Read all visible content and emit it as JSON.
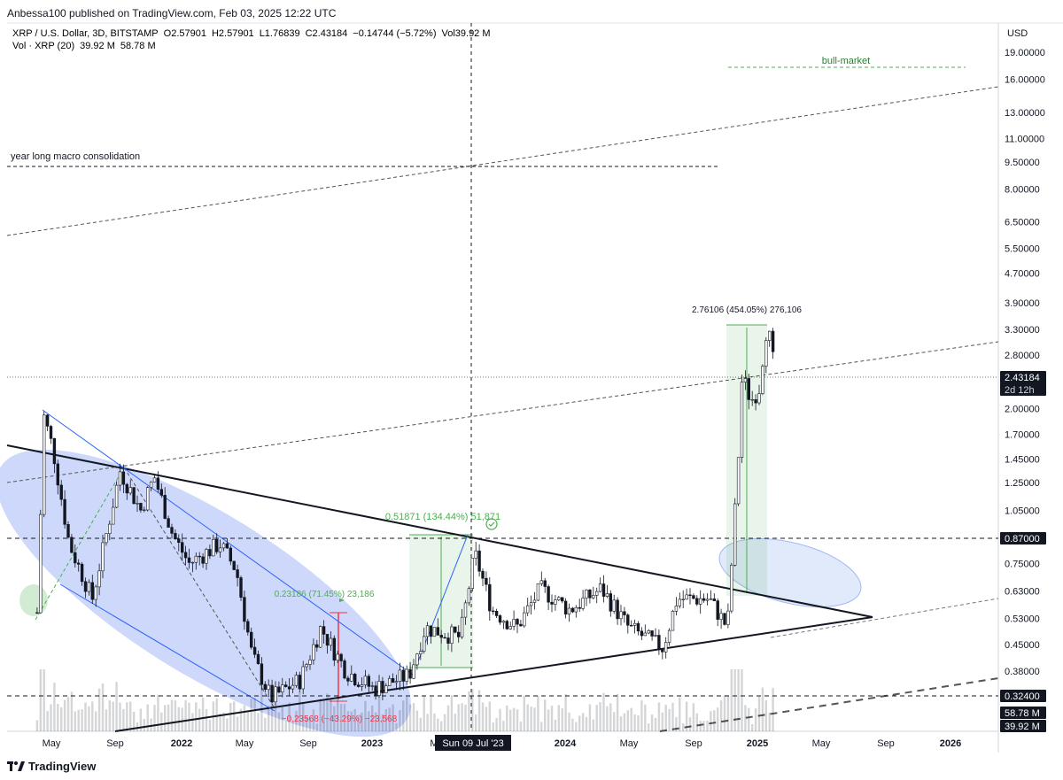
{
  "header": {
    "published": "Anbessa100 published on TradingView.com, Feb 03, 2025 12:22 UTC",
    "symbol": "XRP / U.S. Dollar, 3D, BITSTAMP",
    "o": "O2.57901",
    "h": "H2.57901",
    "l": "L1.76839",
    "c": "C2.43184",
    "chg": "−0.14744 (−5.72%)",
    "vol": "Vol39.92 M",
    "vol_label": "Vol · XRP (20)",
    "vol_v1": "39.92 M",
    "vol_v2": "58.78 M"
  },
  "footer": {
    "brand": "TradingView"
  },
  "colors": {
    "up": "#131722",
    "down": "#131722",
    "blue_ellipse": "#6f8ff0",
    "green": "#4caf50",
    "red": "#f23645",
    "price_tag": "#131722"
  },
  "chart_data": {
    "type": "candlestick",
    "y_scale": "log",
    "y_unit": "USD",
    "ylim": [
      0.3,
      22
    ],
    "y_ticks": [
      "19.00000",
      "16.00000",
      "13.00000",
      "11.00000",
      "9.50000",
      "8.00000",
      "6.50000",
      "5.50000",
      "4.70000",
      "3.90000",
      "3.30000",
      "2.80000",
      "2.00000",
      "1.70000",
      "1.45000",
      "1.25000",
      "1.05000",
      "0.75000",
      "0.63000",
      "0.53000",
      "0.45000",
      "0.38000"
    ],
    "x_ticks": [
      "May",
      "Sep",
      "2022",
      "May",
      "Sep",
      "2023",
      "M",
      "2024",
      "May",
      "Sep",
      "2025",
      "May",
      "Sep",
      "2026"
    ],
    "crosshair_date": "Sun 09 Jul '23",
    "price_tags": [
      {
        "label": "0.87000"
      },
      {
        "label": "0.32400"
      },
      {
        "label": "2.43184",
        "sub": "2d 12h"
      },
      {
        "label": "58.78 M"
      },
      {
        "label": "39.92 M"
      }
    ],
    "annotations": [
      {
        "text": "year long macro consolidation"
      },
      {
        "text": "bull-market"
      },
      {
        "text": "2.76106 (454.05%) 276,106"
      },
      {
        "text": "0.51871 (134.44%) 51,871"
      },
      {
        "text": "0.23186 (71.45%) 23,186"
      },
      {
        "text": "−0.23568 (−43.29%) −23,568"
      }
    ],
    "price_path": [
      {
        "t": "2021-04-01",
        "close": 0.55
      },
      {
        "t": "2021-04-14",
        "close": 1.9
      },
      {
        "t": "2021-05-01",
        "close": 1.55
      },
      {
        "t": "2021-06-01",
        "close": 0.85
      },
      {
        "t": "2021-07-15",
        "close": 0.6
      },
      {
        "t": "2021-09-06",
        "close": 1.35
      },
      {
        "t": "2021-10-15",
        "close": 1.05
      },
      {
        "t": "2021-11-10",
        "close": 1.3
      },
      {
        "t": "2021-12-15",
        "close": 0.9
      },
      {
        "t": "2022-01-15",
        "close": 0.75
      },
      {
        "t": "2022-03-15",
        "close": 0.85
      },
      {
        "t": "2022-04-15",
        "close": 0.72
      },
      {
        "t": "2022-05-15",
        "close": 0.42
      },
      {
        "t": "2022-06-20",
        "close": 0.32
      },
      {
        "t": "2022-08-15",
        "close": 0.36
      },
      {
        "t": "2022-09-23",
        "close": 0.5
      },
      {
        "t": "2022-11-10",
        "close": 0.38
      },
      {
        "t": "2023-01-01",
        "close": 0.34
      },
      {
        "t": "2023-03-10",
        "close": 0.37
      },
      {
        "t": "2023-04-10",
        "close": 0.5
      },
      {
        "t": "2023-06-15",
        "close": 0.47
      },
      {
        "t": "2023-07-13",
        "close": 0.8
      },
      {
        "t": "2023-08-15",
        "close": 0.56
      },
      {
        "t": "2023-10-01",
        "close": 0.5
      },
      {
        "t": "2023-11-15",
        "close": 0.64
      },
      {
        "t": "2024-01-10",
        "close": 0.56
      },
      {
        "t": "2024-03-10",
        "close": 0.64
      },
      {
        "t": "2024-05-01",
        "close": 0.5
      },
      {
        "t": "2024-07-05",
        "close": 0.44
      },
      {
        "t": "2024-08-01",
        "close": 0.6
      },
      {
        "t": "2024-10-01",
        "close": 0.6
      },
      {
        "t": "2024-11-05",
        "close": 0.5
      },
      {
        "t": "2024-11-25",
        "close": 1.4
      },
      {
        "t": "2024-12-03",
        "close": 2.45
      },
      {
        "t": "2024-12-20",
        "close": 2.1
      },
      {
        "t": "2025-01-06",
        "close": 2.3
      },
      {
        "t": "2025-01-16",
        "close": 3.3
      },
      {
        "t": "2025-01-27",
        "close": 3.05
      },
      {
        "t": "2025-02-03",
        "close": 2.43
      }
    ]
  }
}
